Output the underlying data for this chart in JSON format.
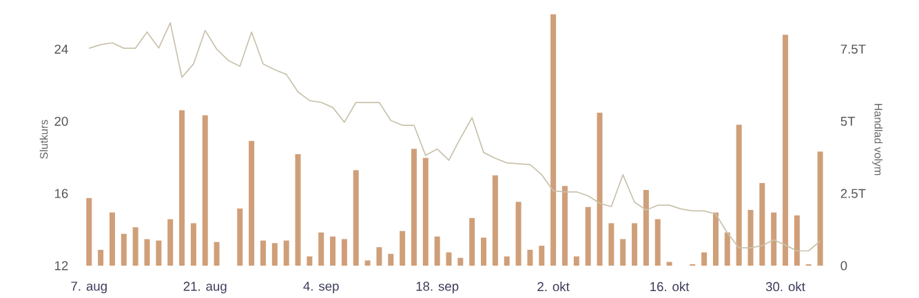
{
  "chart_data": {
    "type": "bar",
    "ylabel": "Slutkurs",
    "y2label": "Handlad volym",
    "categories": [
      "7. aug",
      null,
      null,
      null,
      null,
      null,
      null,
      null,
      null,
      null,
      "21. aug",
      null,
      null,
      null,
      null,
      null,
      null,
      null,
      null,
      null,
      "4. sep",
      null,
      null,
      null,
      null,
      null,
      null,
      null,
      null,
      null,
      "18. sep",
      null,
      null,
      null,
      null,
      null,
      null,
      null,
      null,
      null,
      "2. okt",
      null,
      null,
      null,
      null,
      null,
      null,
      null,
      null,
      null,
      "16. okt",
      null,
      null,
      null,
      null,
      null,
      null,
      null,
      null,
      null,
      "30. okt",
      null,
      null,
      null
    ],
    "series": [
      {
        "type": "line",
        "color": "#c9c2ac",
        "values": [
          24.05,
          24.25,
          24.35,
          24.05,
          24.05,
          24.95,
          24.06,
          25.46,
          22.44,
          23.18,
          25.04,
          24.0,
          23.37,
          23.05,
          24.95,
          23.18,
          22.86,
          22.6,
          21.63,
          21.15,
          21.05,
          20.77,
          19.95,
          21.05,
          21.05,
          21.05,
          20.05,
          19.78,
          19.78,
          18.11,
          18.47,
          17.84,
          19.06,
          20.2,
          18.27,
          17.95,
          17.7,
          17.65,
          17.6,
          17.04,
          16.15,
          16.09,
          16.09,
          15.87,
          15.46,
          15.27,
          17.04,
          15.52,
          15.08,
          15.35,
          15.35,
          15.14,
          15.04,
          15.04,
          14.86,
          13.81,
          12.99,
          12.99,
          13.11,
          13.43,
          13.14,
          12.82,
          12.82,
          13.37
        ]
      },
      {
        "axis": "y2",
        "color": "#cf9f79",
        "values": [
          2.34,
          0.55,
          1.84,
          1.1,
          1.33,
          0.92,
          0.87,
          1.61,
          5.38,
          1.47,
          5.21,
          0.82,
          null,
          1.98,
          4.32,
          0.87,
          0.78,
          0.87,
          3.86,
          0.32,
          1.15,
          1.01,
          0.92,
          3.31,
          0.18,
          0.64,
          0.41,
          1.2,
          4.05,
          3.73,
          1.01,
          0.46,
          0.27,
          1.65,
          0.97,
          3.13,
          0.32,
          2.21,
          0.55,
          0.69,
          8.71,
          2.76,
          0.32,
          2.03,
          5.3,
          1.47,
          0.92,
          1.47,
          2.62,
          1.61,
          0.13,
          null,
          0.05,
          0.46,
          1.84,
          1.15,
          4.88,
          1.93,
          2.86,
          1.84,
          8.0,
          1.74,
          0.05,
          3.95
        ]
      }
    ],
    "ylim": [
      12,
      26
    ],
    "yticks": [
      12,
      16,
      20,
      24
    ],
    "y2lim": [
      0,
      8.75
    ],
    "y2ticks": [
      0,
      {
        "value": 2.5,
        "label": "2.5T"
      },
      {
        "value": 5,
        "label": "5T"
      },
      {
        "value": 7.5,
        "label": "7.5T"
      }
    ],
    "marker": "none"
  }
}
